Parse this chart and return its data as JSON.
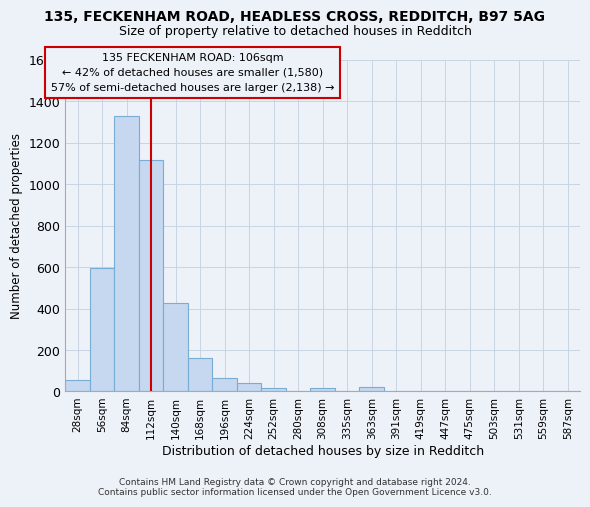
{
  "title_line1": "135, FECKENHAM ROAD, HEADLESS CROSS, REDDITCH, B97 5AG",
  "title_line2": "Size of property relative to detached houses in Redditch",
  "xlabel": "Distribution of detached houses by size in Redditch",
  "ylabel": "Number of detached properties",
  "footer_line1": "Contains HM Land Registry data © Crown copyright and database right 2024.",
  "footer_line2": "Contains public sector information licensed under the Open Government Licence v3.0.",
  "bar_labels": [
    "28sqm",
    "56sqm",
    "84sqm",
    "112sqm",
    "140sqm",
    "168sqm",
    "196sqm",
    "224sqm",
    "252sqm",
    "280sqm",
    "308sqm",
    "335sqm",
    "363sqm",
    "391sqm",
    "419sqm",
    "447sqm",
    "475sqm",
    "503sqm",
    "531sqm",
    "559sqm",
    "587sqm"
  ],
  "bar_values": [
    55,
    595,
    1330,
    1115,
    425,
    160,
    65,
    40,
    15,
    0,
    15,
    0,
    20,
    0,
    0,
    0,
    0,
    0,
    0,
    0,
    0
  ],
  "bar_color": "#c5d8ef",
  "bar_edge_color": "#7aadd4",
  "grid_color": "#c8d4e4",
  "background_color": "#edf1f8",
  "vline_color": "#cc0000",
  "annotation_line1": "135 FECKENHAM ROAD: 106sqm",
  "annotation_line2": "← 42% of detached houses are smaller (1,580)",
  "annotation_line3": "57% of semi-detached houses are larger (2,138) →",
  "annotation_box_color": "#cc0000",
  "ylim": [
    0,
    1600
  ],
  "yticks": [
    0,
    200,
    400,
    600,
    800,
    1000,
    1200,
    1400,
    1600
  ]
}
